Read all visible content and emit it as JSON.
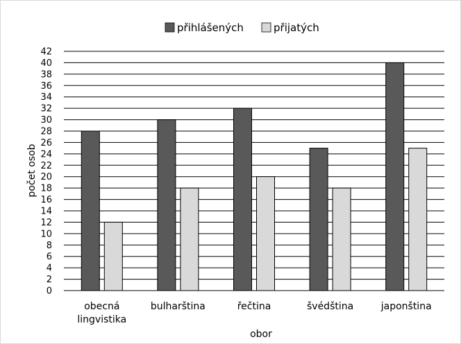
{
  "chart_data": {
    "type": "bar",
    "categories": [
      [
        "obecná",
        "lingvistika"
      ],
      [
        "bulharština"
      ],
      [
        "řečtina"
      ],
      [
        "švédština"
      ],
      [
        "japonština"
      ]
    ],
    "series": [
      {
        "name": "přihlášených",
        "values": [
          28,
          30,
          32,
          25,
          40
        ],
        "color": "#595959"
      },
      {
        "name": "přijatých",
        "values": [
          12,
          18,
          20,
          18,
          25
        ],
        "color": "#d9d9d9"
      }
    ],
    "xlabel": "obor",
    "ylabel": "počet osob",
    "ylim": [
      0,
      42
    ],
    "ytick_step": 2,
    "grid": true,
    "legend_position": "top"
  }
}
